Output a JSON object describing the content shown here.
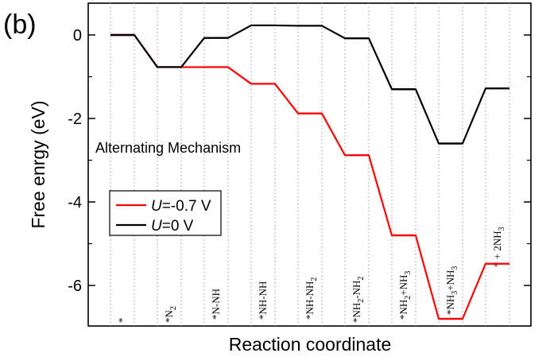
{
  "panel_label": "(b)",
  "chart_data": {
    "type": "line",
    "title": "",
    "xlabel": "Reaction coordinate",
    "ylabel": "Free enrgy (eV)",
    "ylim": [
      -7.0,
      0.55
    ],
    "yticks": [
      0,
      -2,
      -4,
      -6
    ],
    "ytick_labels": [
      "0",
      "-2",
      "-4",
      "-6"
    ],
    "grid": "vertical dotted lines at each step boundary",
    "annotation": "Alternating Mechanism",
    "states": [
      {
        "base": "*",
        "sub1": "",
        "mid": "",
        "sub2": "",
        "tail": ""
      },
      {
        "base": "*N",
        "sub1": "2",
        "mid": "",
        "sub2": "",
        "tail": ""
      },
      {
        "base": "*N-NH",
        "sub1": "",
        "mid": "",
        "sub2": "",
        "tail": ""
      },
      {
        "base": "*NH-NH",
        "sub1": "",
        "mid": "",
        "sub2": "",
        "tail": ""
      },
      {
        "base": "*NH-NH",
        "sub1": "2",
        "mid": "",
        "sub2": "",
        "tail": ""
      },
      {
        "base": "*NH",
        "sub1": "2",
        "mid": "-NH",
        "sub2": "2",
        "tail": ""
      },
      {
        "base": "*NH",
        "sub1": "2",
        "mid": "+NH",
        "sub2": "3",
        "tail": ""
      },
      {
        "base": "*NH",
        "sub1": "3",
        "mid": "+NH",
        "sub2": "3",
        "tail": ""
      },
      {
        "base": "* + 2NH",
        "sub1": "3",
        "mid": "",
        "sub2": "",
        "tail": ""
      }
    ],
    "legend": {
      "placement": "middle-left"
    },
    "series": [
      {
        "name": "U=-0.7 V",
        "italic": "U",
        "rest": "=-0.7 V",
        "color": "#ff0000",
        "values": [
          0.0,
          -0.77,
          -0.77,
          -1.17,
          -1.88,
          -2.88,
          -4.8,
          -6.8,
          -5.48
        ]
      },
      {
        "name": "U=0 V",
        "italic": "U",
        "rest": "=0 V",
        "color": "#000000",
        "values": [
          0.0,
          -0.77,
          -0.07,
          0.23,
          0.22,
          -0.08,
          -1.3,
          -2.6,
          -1.28
        ]
      }
    ]
  }
}
